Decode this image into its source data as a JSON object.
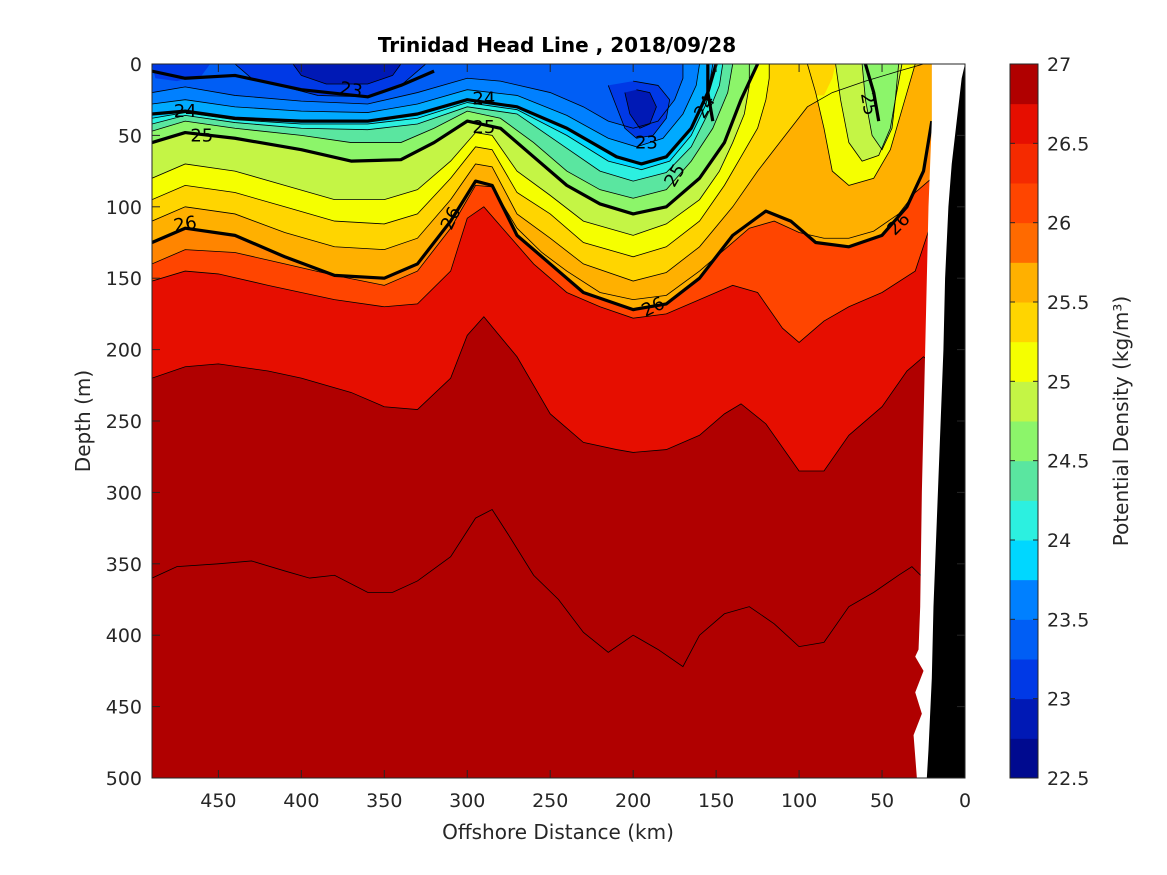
{
  "chart_data": {
    "type": "contour",
    "title": "Trinidad Head Line , 2018/09/28",
    "xlabel": "Offshore Distance (km)",
    "ylabel": "Depth (m)",
    "colorbar_label": "Potential Density (kg/m³)",
    "xlim": [
      490,
      0
    ],
    "ylim": [
      500,
      0
    ],
    "x_ticks": [
      450,
      400,
      350,
      300,
      250,
      200,
      150,
      100,
      50,
      0
    ],
    "y_ticks": [
      0,
      50,
      100,
      150,
      200,
      250,
      300,
      350,
      400,
      450,
      500
    ],
    "colorbar": {
      "min": 22.5,
      "max": 27,
      "step": 0.25,
      "tick_values": [
        22.5,
        23,
        23.5,
        24,
        24.5,
        25,
        25.5,
        26,
        26.5,
        27
      ],
      "colors": [
        "#000a8f",
        "#0019b5",
        "#0039e6",
        "#005ef5",
        "#0080ff",
        "#00aaff",
        "#00d7ff",
        "#2cf0e0",
        "#5ae6a0",
        "#8cf56a",
        "#c4f545",
        "#f5ff00",
        "#ffd500",
        "#ffb000",
        "#ff8500",
        "#ff6a00",
        "#ff4500",
        "#f52a00",
        "#e60e00",
        "#b00000"
      ]
    },
    "contour_fills": [
      {
        "level": 22.75,
        "color": "#000a8f"
      },
      {
        "level": 23.0,
        "color": "#0019b5"
      },
      {
        "level": 23.25,
        "color": "#0039e6"
      },
      {
        "level": 23.5,
        "color": "#005ef5"
      },
      {
        "level": 23.75,
        "color": "#0080ff"
      },
      {
        "level": 24.0,
        "color": "#00aaff"
      },
      {
        "level": 24.25,
        "color": "#00d7ff"
      },
      {
        "level": 24.5,
        "color": "#2cf0e0"
      },
      {
        "level": 24.75,
        "color": "#5ae6a0"
      },
      {
        "level": 25.0,
        "color": "#8cf56a"
      },
      {
        "level": 25.25,
        "color": "#c4f545"
      },
      {
        "level": 25.5,
        "color": "#f5ff00"
      },
      {
        "level": 25.75,
        "color": "#ffd500"
      },
      {
        "level": 26.0,
        "color": "#ffb000"
      },
      {
        "level": 26.25,
        "color": "#ff8500"
      },
      {
        "level": 26.5,
        "color": "#ff4500"
      },
      {
        "level": 26.75,
        "color": "#e60e00"
      },
      {
        "level": 27.0,
        "color": "#b00000"
      }
    ],
    "labeled_isopycnals": [
      {
        "value": 23,
        "points": [
          [
            490,
            5
          ],
          [
            470,
            10
          ],
          [
            440,
            8
          ],
          [
            400,
            18
          ],
          [
            360,
            23
          ],
          [
            340,
            15
          ],
          [
            320,
            5
          ]
        ]
      },
      {
        "value": 24,
        "points": [
          [
            490,
            35
          ],
          [
            470,
            33
          ],
          [
            440,
            38
          ],
          [
            400,
            40
          ],
          [
            360,
            40
          ],
          [
            330,
            35
          ],
          [
            300,
            25
          ],
          [
            270,
            30
          ],
          [
            240,
            45
          ],
          [
            210,
            65
          ],
          [
            195,
            70
          ],
          [
            180,
            65
          ],
          [
            165,
            45
          ],
          [
            155,
            20
          ],
          [
            150,
            0
          ]
        ]
      },
      {
        "value": 25,
        "points": [
          [
            490,
            55
          ],
          [
            470,
            48
          ],
          [
            440,
            52
          ],
          [
            400,
            60
          ],
          [
            370,
            68
          ],
          [
            340,
            67
          ],
          [
            320,
            55
          ],
          [
            300,
            40
          ],
          [
            280,
            45
          ],
          [
            260,
            65
          ],
          [
            240,
            85
          ],
          [
            220,
            98
          ],
          [
            200,
            105
          ],
          [
            180,
            100
          ],
          [
            160,
            80
          ],
          [
            145,
            55
          ],
          [
            135,
            25
          ],
          [
            125,
            0
          ]
        ]
      },
      {
        "value": 26,
        "points": [
          [
            490,
            125
          ],
          [
            470,
            115
          ],
          [
            440,
            120
          ],
          [
            410,
            135
          ],
          [
            380,
            148
          ],
          [
            350,
            150
          ],
          [
            330,
            140
          ],
          [
            310,
            110
          ],
          [
            295,
            82
          ],
          [
            285,
            85
          ],
          [
            270,
            120
          ],
          [
            250,
            140
          ],
          [
            230,
            160
          ],
          [
            200,
            172
          ],
          [
            180,
            168
          ],
          [
            160,
            150
          ],
          [
            140,
            120
          ],
          [
            120,
            103
          ],
          [
            105,
            110
          ],
          [
            90,
            125
          ],
          [
            70,
            128
          ],
          [
            50,
            120
          ],
          [
            35,
            100
          ],
          [
            25,
            75
          ],
          [
            20,
            40
          ]
        ]
      },
      {
        "value": 25,
        "points": [
          [
            60,
            0
          ],
          [
            55,
            20
          ],
          [
            52,
            40
          ]
        ]
      },
      {
        "value": 24,
        "points": [
          [
            155,
            0
          ],
          [
            155,
            20
          ],
          [
            152,
            40
          ]
        ]
      }
    ],
    "approx_layer_boundaries_depth_m": {
      "x_km": [
        490,
        450,
        400,
        350,
        300,
        250,
        200,
        150,
        100,
        50,
        20
      ],
      "sigma_26_5": [
        155,
        145,
        160,
        170,
        110,
        150,
        178,
        160,
        195,
        165,
        100
      ],
      "sigma_26_75": [
        220,
        210,
        240,
        240,
        185,
        240,
        272,
        250,
        285,
        240,
        205
      ],
      "sigma_27": [
        360,
        350,
        360,
        370,
        315,
        370,
        400,
        390,
        405,
        360,
        355
      ]
    }
  }
}
